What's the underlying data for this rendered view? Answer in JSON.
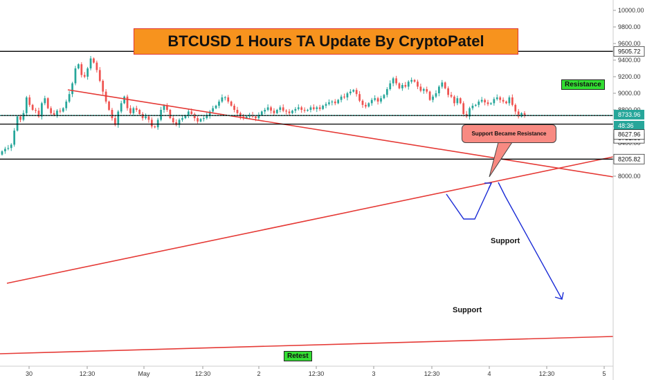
{
  "header": {
    "title": "BTCUSD 1 Hours TA Update By CryptoPatel"
  },
  "annotations": {
    "resistance_tag": "Resistance",
    "retest_tag": "Retest",
    "callout": "Support Became Resistance",
    "support_upper": "Support",
    "support_lower": "Support"
  },
  "price_axis": {
    "ticks": [
      "10000.00",
      "9800.00",
      "9600.00",
      "9400.00",
      "9200.00",
      "9000.00",
      "8800.00",
      "8600.00",
      "8400.00",
      "8200.00",
      "8000.00"
    ],
    "tick_values": [
      10000,
      9800,
      9600,
      9400,
      9200,
      9000,
      8800,
      8600,
      8400,
      8200,
      8000
    ],
    "badges": {
      "resistance": "9505.72",
      "current_price": "8733.96",
      "countdown": "48:36",
      "support_1": "8731.86",
      "support_2": "8627.96",
      "support_3": "8205.82"
    }
  },
  "time_axis": {
    "labels": [
      "30",
      "12:30",
      "May",
      "12:30",
      "2",
      "12:30",
      "3",
      "12:30",
      "4",
      "12:30",
      "5"
    ]
  },
  "colors": {
    "up": "#26a69a",
    "down": "#ef5350",
    "trendline": "#e53935",
    "arrow": "#1a2bd6",
    "level": "#000000",
    "title_bg": "#f7931e",
    "tag_green": "#33dd33",
    "callout_bg": "#f88a82"
  },
  "chart_data": {
    "type": "candlestick",
    "symbol": "BTCUSD",
    "timeframe": "1H",
    "ylim": [
      7880,
      10060
    ],
    "levels": [
      9505.72,
      8731.86,
      8627.96,
      8205.82
    ],
    "current_price": 8733.96,
    "closes": [
      8300,
      8330,
      8340,
      8380,
      8550,
      8720,
      8680,
      8760,
      8950,
      8860,
      8800,
      8790,
      8720,
      8880,
      8940,
      8820,
      8760,
      8740,
      8790,
      8780,
      8820,
      8900,
      8990,
      9120,
      9300,
      9350,
      9220,
      9200,
      9300,
      9420,
      9370,
      9280,
      9150,
      9020,
      8900,
      8800,
      8700,
      8620,
      8780,
      8880,
      8960,
      8820,
      8760,
      8820,
      8800,
      8750,
      8700,
      8720,
      8680,
      8600,
      8590,
      8680,
      8800,
      8850,
      8800,
      8700,
      8650,
      8620,
      8680,
      8700,
      8730,
      8780,
      8750,
      8700,
      8660,
      8690,
      8700,
      8730,
      8780,
      8820,
      8850,
      8900,
      8950,
      8950,
      8900,
      8850,
      8800,
      8760,
      8720,
      8700,
      8720,
      8740,
      8720,
      8700,
      8740,
      8780,
      8800,
      8830,
      8790,
      8760,
      8800,
      8830,
      8790,
      8780,
      8760,
      8790,
      8810,
      8830,
      8800,
      8790,
      8800,
      8830,
      8810,
      8830,
      8810,
      8850,
      8870,
      8890,
      8900,
      8880,
      8920,
      8960,
      8950,
      9000,
      9020,
      9040,
      8990,
      8910,
      8860,
      8840,
      8880,
      8920,
      8940,
      8900,
      8940,
      8980,
      9050,
      9120,
      9180,
      9120,
      9060,
      9100,
      9080,
      9140,
      9160,
      9140,
      9080,
      9030,
      9050,
      9020,
      8920,
      8960,
      9000,
      9080,
      9130,
      9060,
      8980,
      8960,
      8880,
      8940,
      8880,
      8750,
      8720,
      8820,
      8850,
      8860,
      8900,
      8920,
      8890,
      8870,
      8880,
      8930,
      8950,
      8920,
      8900,
      8880,
      8950,
      8860,
      8780,
      8720,
      8760,
      8733.96
    ]
  }
}
